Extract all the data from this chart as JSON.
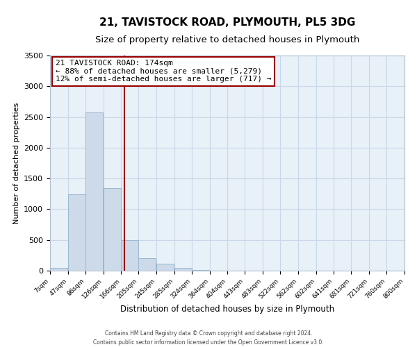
{
  "title_line1": "21, TAVISTOCK ROAD, PLYMOUTH, PL5 3DG",
  "title_line2": "Size of property relative to detached houses in Plymouth",
  "xlabel": "Distribution of detached houses by size in Plymouth",
  "ylabel": "Number of detached properties",
  "bar_left_edges": [
    7,
    47,
    86,
    126,
    166,
    205,
    245,
    285,
    324,
    364,
    404,
    443,
    483,
    522,
    562,
    602,
    641,
    681,
    721,
    760
  ],
  "bar_heights": [
    50,
    1240,
    2570,
    1340,
    500,
    205,
    110,
    40,
    15,
    5,
    2,
    1,
    0,
    0,
    0,
    0,
    0,
    0,
    0,
    0
  ],
  "bin_width": 39,
  "tick_labels": [
    "7sqm",
    "47sqm",
    "86sqm",
    "126sqm",
    "166sqm",
    "205sqm",
    "245sqm",
    "285sqm",
    "324sqm",
    "364sqm",
    "404sqm",
    "443sqm",
    "483sqm",
    "522sqm",
    "562sqm",
    "602sqm",
    "641sqm",
    "681sqm",
    "721sqm",
    "760sqm",
    "800sqm"
  ],
  "bar_color": "#cddaea",
  "bar_edge_color": "#9ab8d0",
  "property_line_x": 174,
  "property_line_color": "#990000",
  "annotation_text_line1": "21 TAVISTOCK ROAD: 174sqm",
  "annotation_text_line2": "← 88% of detached houses are smaller (5,279)",
  "annotation_text_line3": "12% of semi-detached houses are larger (717) →",
  "annotation_box_color": "#990000",
  "annotation_bg": "#ffffff",
  "ylim": [
    0,
    3500
  ],
  "xlim": [
    7,
    800
  ],
  "yticks": [
    0,
    500,
    1000,
    1500,
    2000,
    2500,
    3000,
    3500
  ],
  "grid_color": "#c8d8e8",
  "footer_line1": "Contains HM Land Registry data © Crown copyright and database right 2024.",
  "footer_line2": "Contains public sector information licensed under the Open Government Licence v3.0.",
  "title_fontsize": 11,
  "subtitle_fontsize": 9.5,
  "ax_bg_color": "#e8f0f8"
}
